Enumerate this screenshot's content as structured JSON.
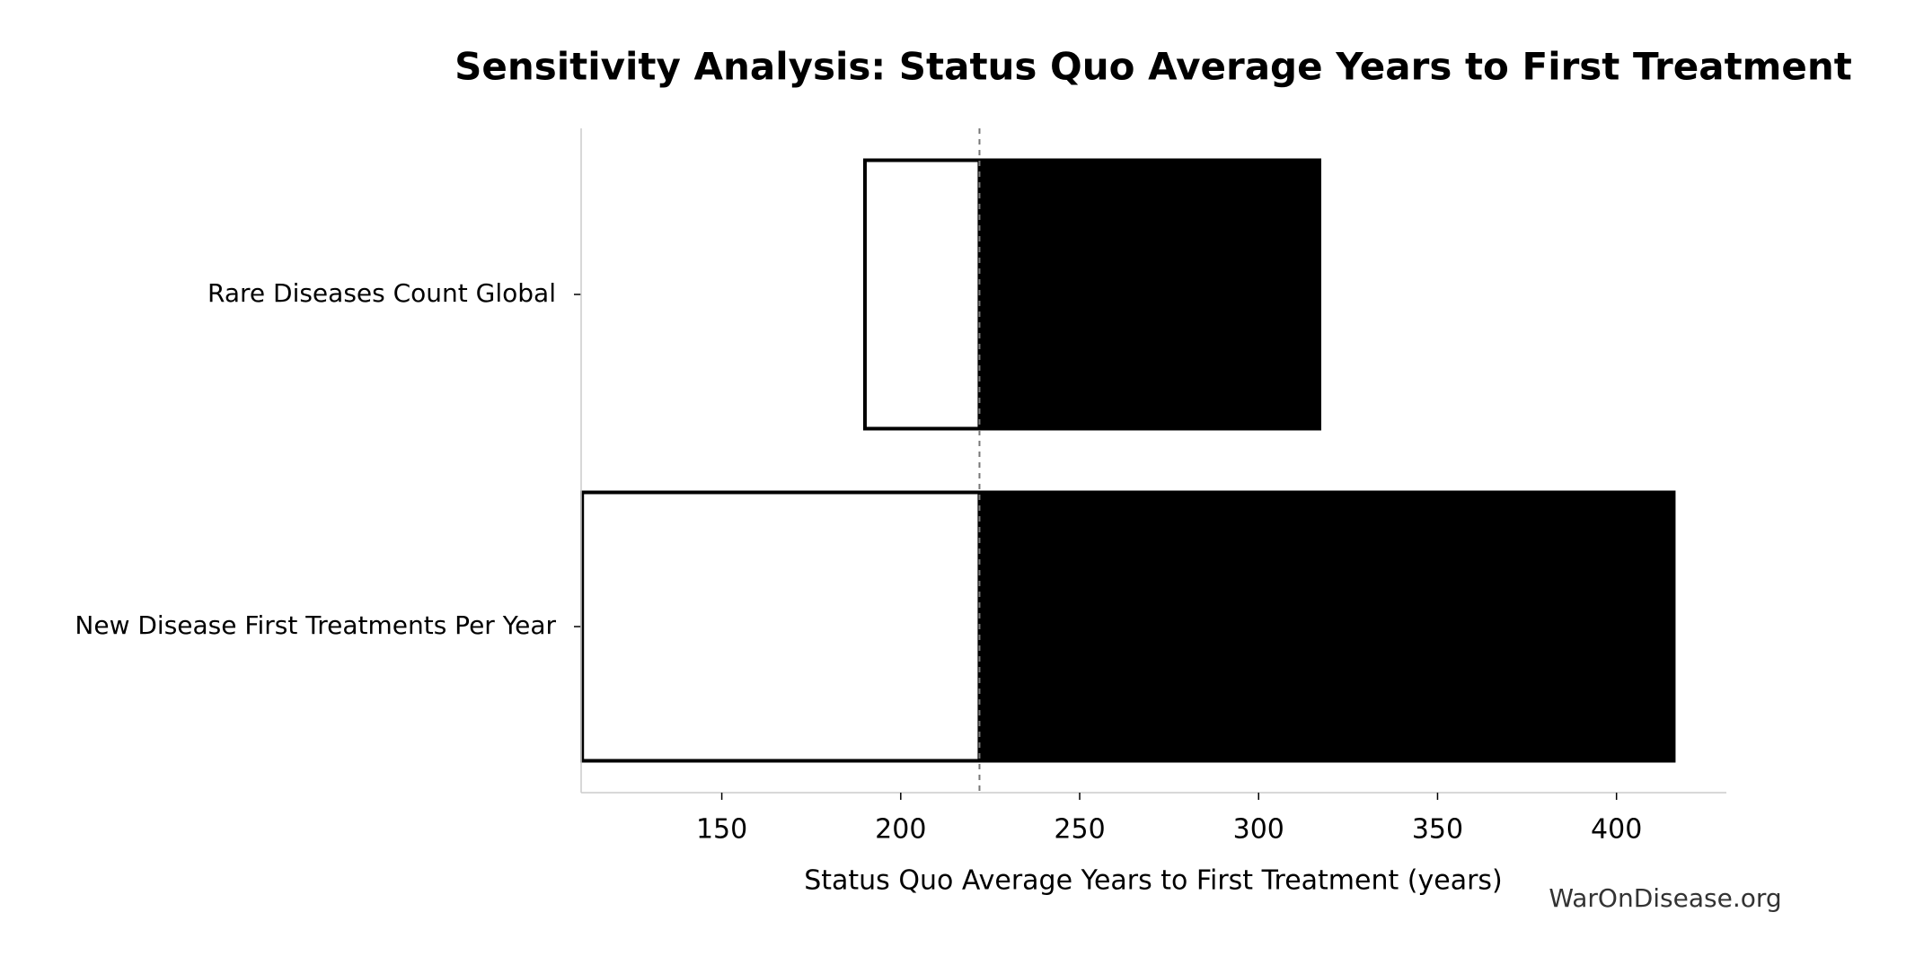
{
  "chart_data": {
    "type": "tornado",
    "title": "Sensitivity Analysis: Status Quo Average Years to First Treatment",
    "x_label": "Status Quo Average Years to First Treatment (years)",
    "annotation": "WarOnDisease.org",
    "categories": [
      "Rare Diseases Count Global",
      "New Disease First Treatments Per Year"
    ],
    "baseline": 222,
    "series": [
      {
        "color": "#ffffff",
        "edgecolor": "#000000",
        "values": [
          190,
          111
        ]
      },
      {
        "color": "#000000",
        "edgecolor": "#000000",
        "values": [
          317,
          416
        ]
      }
    ],
    "xlim": [
      110.7,
      430.7
    ],
    "xticks": [
      150,
      200,
      250,
      300,
      350,
      400
    ]
  }
}
